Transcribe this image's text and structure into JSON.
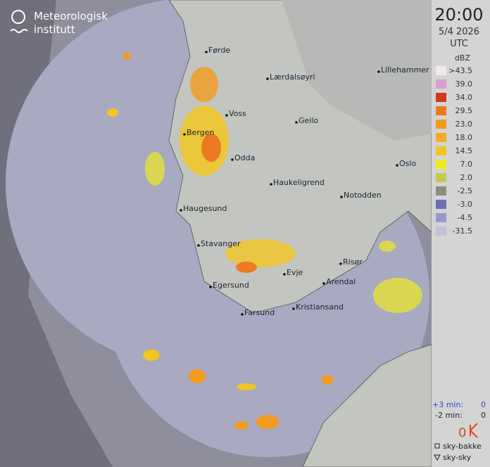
{
  "logo": {
    "line1": "Meteorologisk",
    "line2": "institutt"
  },
  "time": "20:00",
  "date": "5/4 2026",
  "zone": "UTC",
  "legend": {
    "title": "dBZ",
    "items": [
      {
        "label": ">43.5",
        "color": "#f1e8ee"
      },
      {
        "label": "39.0",
        "color": "#d99ed2"
      },
      {
        "label": "34.0",
        "color": "#cf3a1f"
      },
      {
        "label": "29.5",
        "color": "#ec7a22"
      },
      {
        "label": "23.0",
        "color": "#f29b1f"
      },
      {
        "label": "18.0",
        "color": "#f4ad24"
      },
      {
        "label": "14.5",
        "color": "#f1c522"
      },
      {
        "label": "7.0",
        "color": "#eeea22"
      },
      {
        "label": "2.0",
        "color": "#c9c84c"
      },
      {
        "label": "-2.5",
        "color": "#8f8f80"
      },
      {
        "label": "-3.0",
        "color": "#6f6fb6"
      },
      {
        "label": "-4.5",
        "color": "#9999c9"
      },
      {
        "label": "-31.5",
        "color": "#c1c1dc"
      }
    ]
  },
  "cities": [
    "Førde",
    "Lærdalsøyri",
    "Lillehammer",
    "Voss",
    "Geilo",
    "Bergen",
    "Odda",
    "Oslo",
    "Haukeligrend",
    "Notodden",
    "Haugesund",
    "Stavanger",
    "Risør",
    "Evje",
    "Arendal",
    "Egersund",
    "Kristiansand",
    "Farsund"
  ],
  "lightning": {
    "plus_label": "+3 min:",
    "plus_value": "0",
    "minus_label": "-2 min:",
    "minus_value": "0",
    "total": "0",
    "ground": "sky-bakke",
    "cloud": "sky-sky"
  }
}
